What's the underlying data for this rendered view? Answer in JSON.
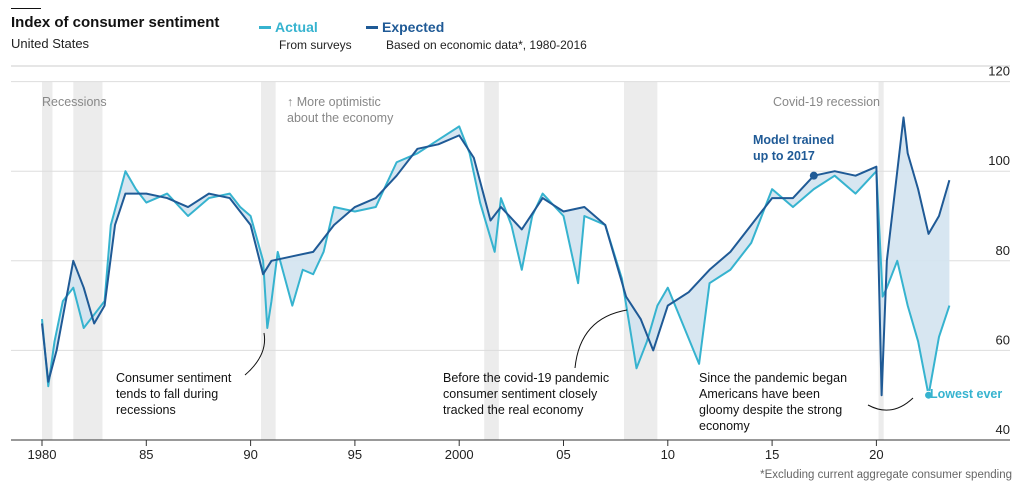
{
  "header": {
    "title": "Index of consumer sentiment",
    "subtitle": "United States"
  },
  "legend": [
    {
      "label": "Actual",
      "desc": "From surveys",
      "color": "#36b3cf"
    },
    {
      "label": "Expected",
      "desc": "Based on economic data*, 1980-2016",
      "color": "#1f5a96"
    }
  ],
  "annotations": {
    "recessions": "Recessions",
    "optimistic": "↑ More optimistic about the economy",
    "covid": "Covid-19 recession",
    "model": "Model trained up to 2017",
    "fall": "Consumer sentiment tends to fall during recessions",
    "tracked": "Before the covid-19 pandemic consumer sentiment closely tracked the real economy",
    "gloomy": "Since the pandemic began Americans have been gloomy despite the strong economy",
    "lowest": "Lowest ever"
  },
  "footnote": "*Excluding current aggregate consumer spending",
  "chart_data": {
    "type": "line",
    "title": "Index of consumer sentiment",
    "ylim": [
      40,
      120
    ],
    "yticks": [
      "40",
      "60",
      "80",
      "100",
      "120"
    ],
    "xticks": [
      {
        "v": 1980,
        "l": "1980"
      },
      {
        "v": 1985,
        "l": "85"
      },
      {
        "v": 1990,
        "l": "90"
      },
      {
        "v": 1995,
        "l": "95"
      },
      {
        "v": 2000,
        "l": "2000"
      },
      {
        "v": 2005,
        "l": "05"
      },
      {
        "v": 2010,
        "l": "10"
      },
      {
        "v": 2015,
        "l": "15"
      },
      {
        "v": 2020,
        "l": "20"
      }
    ],
    "xlim": [
      1980,
      2027.5
    ],
    "recessions": [
      [
        1980.0,
        1980.5
      ],
      [
        1981.5,
        1982.9
      ],
      [
        1990.5,
        1991.2
      ],
      [
        2001.2,
        2001.9
      ],
      [
        2007.9,
        2009.5
      ],
      [
        2020.1,
        2020.35
      ]
    ],
    "series": [
      {
        "name": "Actual",
        "color": "#36b3cf",
        "points": [
          [
            1980,
            67
          ],
          [
            1980.3,
            52
          ],
          [
            1980.6,
            62
          ],
          [
            1981,
            71
          ],
          [
            1981.5,
            74
          ],
          [
            1982,
            65
          ],
          [
            1982.5,
            68
          ],
          [
            1983,
            71
          ],
          [
            1983.3,
            88
          ],
          [
            1984,
            100
          ],
          [
            1984.5,
            96
          ],
          [
            1985,
            93
          ],
          [
            1986,
            95
          ],
          [
            1987,
            90
          ],
          [
            1988,
            94
          ],
          [
            1989,
            95
          ],
          [
            1989.5,
            92
          ],
          [
            1990,
            90
          ],
          [
            1990.6,
            80
          ],
          [
            1990.8,
            65
          ],
          [
            1991,
            71
          ],
          [
            1991.3,
            82
          ],
          [
            1992,
            70
          ],
          [
            1992.5,
            78
          ],
          [
            1993,
            77
          ],
          [
            1993.5,
            82
          ],
          [
            1994,
            92
          ],
          [
            1995,
            91
          ],
          [
            1996,
            92
          ],
          [
            1997,
            102
          ],
          [
            1998,
            104
          ],
          [
            1999,
            107
          ],
          [
            2000,
            110
          ],
          [
            2000.5,
            104
          ],
          [
            2001,
            93
          ],
          [
            2001.7,
            82
          ],
          [
            2002,
            94
          ],
          [
            2002.5,
            88
          ],
          [
            2003,
            78
          ],
          [
            2003.5,
            90
          ],
          [
            2004,
            95
          ],
          [
            2005,
            90
          ],
          [
            2005.7,
            75
          ],
          [
            2006,
            90
          ],
          [
            2007,
            88
          ],
          [
            2007.8,
            76
          ],
          [
            2008.5,
            56
          ],
          [
            2009,
            62
          ],
          [
            2009.5,
            70
          ],
          [
            2010,
            74
          ],
          [
            2011.5,
            57
          ],
          [
            2012,
            75
          ],
          [
            2013,
            78
          ],
          [
            2014,
            84
          ],
          [
            2015,
            96
          ],
          [
            2016,
            92
          ],
          [
            2017,
            96
          ],
          [
            2018,
            99
          ],
          [
            2019,
            95
          ],
          [
            2020,
            100
          ],
          [
            2020.3,
            72
          ],
          [
            2020.5,
            74
          ],
          [
            2021,
            80
          ],
          [
            2021.5,
            70
          ],
          [
            2022,
            62
          ],
          [
            2022.5,
            50
          ],
          [
            2023,
            63
          ],
          [
            2023.5,
            70
          ]
        ]
      },
      {
        "name": "Expected",
        "color": "#1f5a96",
        "points": [
          [
            1980,
            66
          ],
          [
            1980.3,
            53
          ],
          [
            1980.7,
            60
          ],
          [
            1981.5,
            80
          ],
          [
            1982,
            74
          ],
          [
            1982.5,
            66
          ],
          [
            1983,
            70
          ],
          [
            1983.5,
            88
          ],
          [
            1984,
            95
          ],
          [
            1985,
            95
          ],
          [
            1986,
            94
          ],
          [
            1987,
            92
          ],
          [
            1988,
            95
          ],
          [
            1989,
            94
          ],
          [
            1990,
            88
          ],
          [
            1990.6,
            77
          ],
          [
            1991,
            80
          ],
          [
            1992,
            81
          ],
          [
            1993,
            82
          ],
          [
            1994,
            88
          ],
          [
            1995,
            92
          ],
          [
            1996,
            94
          ],
          [
            1997,
            99
          ],
          [
            1998,
            105
          ],
          [
            1999,
            106
          ],
          [
            2000,
            108
          ],
          [
            2000.7,
            103
          ],
          [
            2001.5,
            89
          ],
          [
            2002,
            92
          ],
          [
            2003,
            87
          ],
          [
            2004,
            94
          ],
          [
            2005,
            91
          ],
          [
            2006,
            92
          ],
          [
            2007,
            88
          ],
          [
            2008,
            72
          ],
          [
            2008.7,
            67
          ],
          [
            2009.3,
            60
          ],
          [
            2010,
            70
          ],
          [
            2011,
            73
          ],
          [
            2012,
            78
          ],
          [
            2013,
            82
          ],
          [
            2014,
            88
          ],
          [
            2015,
            94
          ],
          [
            2016,
            94
          ],
          [
            2017,
            99
          ],
          [
            2018,
            100
          ],
          [
            2019,
            99
          ],
          [
            2020,
            101
          ],
          [
            2020.25,
            50
          ],
          [
            2020.5,
            80
          ],
          [
            2021,
            100
          ],
          [
            2021.3,
            112
          ],
          [
            2021.5,
            104
          ],
          [
            2022,
            96
          ],
          [
            2022.5,
            86
          ],
          [
            2023,
            90
          ],
          [
            2023.5,
            98
          ]
        ]
      }
    ],
    "markers": [
      {
        "name": "model-trained",
        "x": 2017,
        "y": 99
      },
      {
        "name": "lowest-ever",
        "x": 2022.5,
        "y": 50
      }
    ]
  }
}
